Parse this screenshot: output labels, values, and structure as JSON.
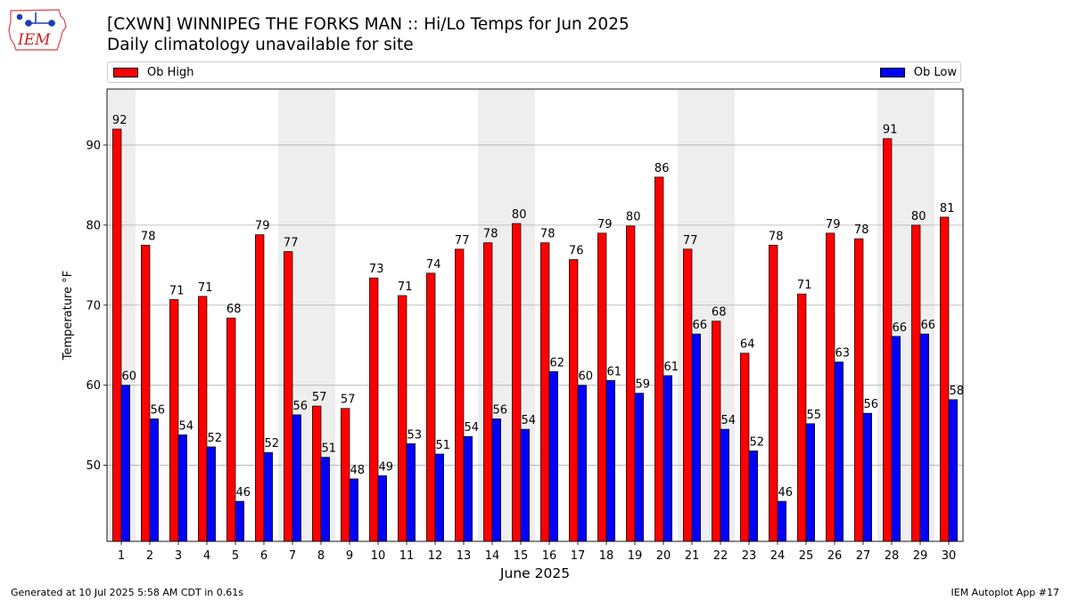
{
  "logo": {
    "text": "IEM"
  },
  "header": {
    "title": "[CXWN] WINNIPEG THE FORKS  MAN :: Hi/Lo Temps for Jun 2025",
    "subtitle": "Daily climatology unavailable for site"
  },
  "footer": {
    "left": "Generated at 10 Jul 2025 5:58 AM CDT in 0.61s",
    "right": "IEM Autoplot App #17"
  },
  "chart_data": {
    "type": "bar",
    "title": "[CXWN] WINNIPEG THE FORKS  MAN :: Hi/Lo Temps for Jun 2025",
    "subtitle": "Daily climatology unavailable for site",
    "xlabel": "June 2025",
    "ylabel": "Temperature °F",
    "ylim": [
      40.5,
      97
    ],
    "yticks": [
      50,
      60,
      70,
      80,
      90
    ],
    "grid": true,
    "legend_position": "top",
    "weekend_shading": [
      [
        1,
        1
      ],
      [
        7,
        8
      ],
      [
        14,
        15
      ],
      [
        21,
        22
      ],
      [
        28,
        29
      ]
    ],
    "categories": [
      "1",
      "2",
      "3",
      "4",
      "5",
      "6",
      "7",
      "8",
      "9",
      "10",
      "11",
      "12",
      "13",
      "14",
      "15",
      "16",
      "17",
      "18",
      "19",
      "20",
      "21",
      "22",
      "23",
      "24",
      "25",
      "26",
      "27",
      "28",
      "29",
      "30"
    ],
    "series": [
      {
        "name": "Ob High",
        "color": "#ff0000",
        "values": [
          92.0,
          77.5,
          70.7,
          71.1,
          68.4,
          78.8,
          76.7,
          57.4,
          57.1,
          73.4,
          71.2,
          74.0,
          77.0,
          77.8,
          80.2,
          77.8,
          75.7,
          79.0,
          79.9,
          86.0,
          77.0,
          68.0,
          64.0,
          77.5,
          71.4,
          79.0,
          78.3,
          90.8,
          80.0,
          81.0
        ],
        "labels": [
          "92",
          "78",
          "71",
          "71",
          "68",
          "79",
          "77",
          "57",
          "57",
          "73",
          "71",
          "74",
          "77",
          "78",
          "80",
          "78",
          "76",
          "79",
          "80",
          "86",
          "77",
          "68",
          "64",
          "78",
          "71",
          "79",
          "78",
          "91",
          "80",
          "81"
        ]
      },
      {
        "name": "Ob Low",
        "color": "#0000ff",
        "values": [
          60.0,
          55.8,
          53.8,
          52.3,
          45.5,
          51.6,
          56.3,
          51.0,
          48.3,
          48.7,
          52.7,
          51.4,
          53.6,
          55.8,
          54.5,
          61.7,
          60.0,
          60.6,
          59.0,
          61.2,
          66.4,
          54.5,
          51.8,
          45.5,
          55.2,
          62.9,
          56.5,
          66.1,
          66.4,
          58.2
        ],
        "labels": [
          "60",
          "56",
          "54",
          "52",
          "46",
          "52",
          "56",
          "51",
          "48",
          "49",
          "53",
          "51",
          "54",
          "56",
          "54",
          "62",
          "60",
          "61",
          "59",
          "61",
          "66",
          "54",
          "52",
          "46",
          "55",
          "63",
          "56",
          "66",
          "66",
          "58"
        ]
      }
    ]
  }
}
